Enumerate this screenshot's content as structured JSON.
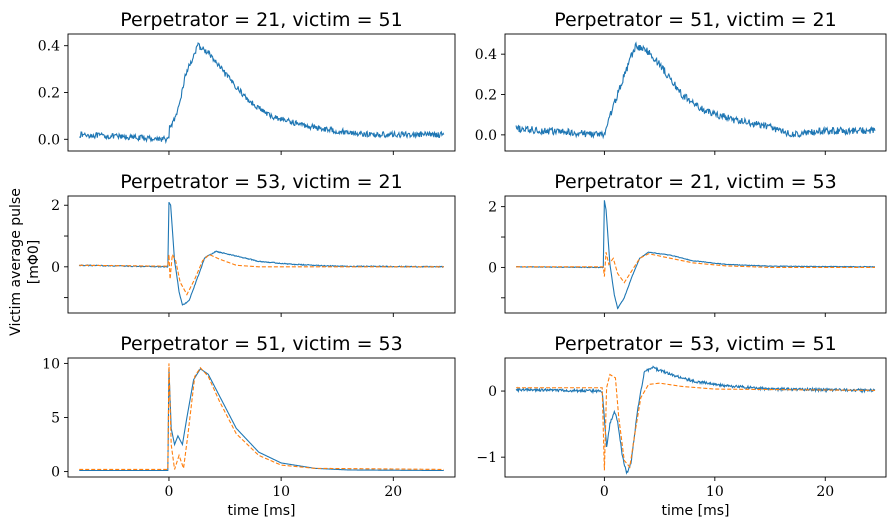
{
  "figure": {
    "ylabel": "Victim average pulse",
    "ylabel_unit": "[mΦ0]",
    "xlabel": "time [ms]"
  },
  "colors": {
    "measured": "#1f77b4",
    "model": "#ff7f0e"
  },
  "chart_data": [
    {
      "type": "line",
      "panel": "top-left",
      "title": "Perpetrator = 21, victim = 51",
      "xlabel": "",
      "ylabel": "",
      "xlim": [
        -9,
        25.5
      ],
      "ylim": [
        -0.05,
        0.45
      ],
      "xticks": [
        0,
        10,
        20
      ],
      "yticks": [
        0.0,
        0.2,
        0.4
      ],
      "ytick_labels": [
        "0.0",
        "0.2",
        "0.4"
      ],
      "series": [
        {
          "style": "solid",
          "color": "#1f77b4",
          "noise": 0.012,
          "points": [
            [
              -8,
              0.02
            ],
            [
              0,
              0.0
            ],
            [
              0.05,
              0.05
            ],
            [
              0.7,
              0.1
            ],
            [
              1.5,
              0.28
            ],
            [
              2.6,
              0.4
            ],
            [
              3.5,
              0.37
            ],
            [
              5,
              0.28
            ],
            [
              7,
              0.17
            ],
            [
              9,
              0.1
            ],
            [
              12,
              0.06
            ],
            [
              15,
              0.035
            ],
            [
              18,
              0.02
            ],
            [
              20,
              0.02
            ],
            [
              24.5,
              0.02
            ]
          ]
        }
      ]
    },
    {
      "type": "line",
      "panel": "top-right",
      "title": "Perpetrator = 51, victim = 21",
      "xlabel": "",
      "ylabel": "",
      "xlim": [
        -9,
        25.5
      ],
      "ylim": [
        -0.08,
        0.5
      ],
      "xticks": [
        0,
        10,
        20
      ],
      "yticks": [
        0.0,
        0.2,
        0.4
      ],
      "ytick_labels": [
        "0.0",
        "0.2",
        "0.4"
      ],
      "series": [
        {
          "style": "solid",
          "color": "#1f77b4",
          "noise": 0.018,
          "points": [
            [
              -8,
              0.03
            ],
            [
              0,
              0.0
            ],
            [
              0.3,
              0.06
            ],
            [
              1.5,
              0.25
            ],
            [
              2.8,
              0.44
            ],
            [
              3.8,
              0.42
            ],
            [
              5,
              0.35
            ],
            [
              7,
              0.2
            ],
            [
              9,
              0.12
            ],
            [
              12,
              0.07
            ],
            [
              15,
              0.04
            ],
            [
              17,
              0.0
            ],
            [
              20,
              0.02
            ],
            [
              24.5,
              0.02
            ]
          ]
        }
      ]
    },
    {
      "type": "line",
      "panel": "middle-left",
      "title": "Perpetrator = 53, victim = 21",
      "xlabel": "",
      "ylabel": "",
      "xlim": [
        -9,
        25.5
      ],
      "ylim": [
        -1.5,
        2.3
      ],
      "xticks": [
        0,
        10,
        20
      ],
      "yticks": [
        -1,
        0,
        1,
        2
      ],
      "ytick_labels": [
        "",
        "0",
        "",
        "2"
      ],
      "series": [
        {
          "style": "solid",
          "color": "#1f77b4",
          "noise": 0.015,
          "points": [
            [
              -8,
              0.05
            ],
            [
              -0.1,
              0.0
            ],
            [
              0.0,
              2.1
            ],
            [
              0.15,
              2.0
            ],
            [
              0.5,
              0.2
            ],
            [
              0.9,
              -0.8
            ],
            [
              1.2,
              -1.25
            ],
            [
              1.8,
              -1.1
            ],
            [
              2.5,
              -0.4
            ],
            [
              3.2,
              0.3
            ],
            [
              4.2,
              0.5
            ],
            [
              6,
              0.35
            ],
            [
              8,
              0.18
            ],
            [
              11,
              0.08
            ],
            [
              15,
              0.02
            ],
            [
              24.5,
              0.0
            ]
          ]
        },
        {
          "style": "dashed",
          "color": "#ff7f0e",
          "noise": 0.0,
          "points": [
            [
              -8,
              0.05
            ],
            [
              -0.1,
              0.02
            ],
            [
              0.0,
              0.4
            ],
            [
              0.1,
              -0.4
            ],
            [
              0.3,
              0.4
            ],
            [
              0.6,
              0.2
            ],
            [
              1.0,
              -0.5
            ],
            [
              1.6,
              -0.9
            ],
            [
              2.3,
              -0.4
            ],
            [
              3.0,
              0.2
            ],
            [
              3.6,
              0.4
            ],
            [
              4.5,
              0.25
            ],
            [
              6,
              0.05
            ],
            [
              8,
              0.0
            ],
            [
              24.5,
              0.0
            ]
          ]
        }
      ]
    },
    {
      "type": "line",
      "panel": "middle-right",
      "title": "Perpetrator = 21, victim = 53",
      "xlabel": "",
      "ylabel": "",
      "xlim": [
        -9,
        25.5
      ],
      "ylim": [
        -1.5,
        2.35
      ],
      "xticks": [
        0,
        10,
        20
      ],
      "yticks": [
        -1,
        0,
        1,
        2
      ],
      "ytick_labels": [
        "",
        "0",
        "",
        "2"
      ],
      "series": [
        {
          "style": "solid",
          "color": "#1f77b4",
          "noise": 0.01,
          "points": [
            [
              -8,
              0.02
            ],
            [
              -0.1,
              0.0
            ],
            [
              0.0,
              2.2
            ],
            [
              0.15,
              1.9
            ],
            [
              0.5,
              0.1
            ],
            [
              0.9,
              -0.9
            ],
            [
              1.2,
              -1.35
            ],
            [
              1.8,
              -1.0
            ],
            [
              2.5,
              -0.3
            ],
            [
              3.2,
              0.3
            ],
            [
              4.0,
              0.5
            ],
            [
              6,
              0.4
            ],
            [
              8,
              0.22
            ],
            [
              11,
              0.1
            ],
            [
              15,
              0.04
            ],
            [
              24.5,
              0.02
            ]
          ]
        },
        {
          "style": "dashed",
          "color": "#ff7f0e",
          "noise": 0.0,
          "points": [
            [
              -8,
              0.02
            ],
            [
              -0.1,
              0.02
            ],
            [
              0.0,
              -0.3
            ],
            [
              0.15,
              0.5
            ],
            [
              0.4,
              0.1
            ],
            [
              0.8,
              0.3
            ],
            [
              1.2,
              -0.2
            ],
            [
              1.8,
              -0.5
            ],
            [
              2.5,
              -0.1
            ],
            [
              3.2,
              0.3
            ],
            [
              4.0,
              0.45
            ],
            [
              6,
              0.3
            ],
            [
              8,
              0.15
            ],
            [
              11,
              0.05
            ],
            [
              15,
              0.0
            ],
            [
              24.5,
              0.0
            ]
          ]
        }
      ]
    },
    {
      "type": "line",
      "panel": "bottom-left",
      "title": "Perpetrator = 51, victim = 53",
      "xlabel": "time [ms]",
      "ylabel": "",
      "xlim": [
        -9,
        25.5
      ],
      "ylim": [
        -0.5,
        10.5
      ],
      "xticks": [
        0,
        10,
        20
      ],
      "yticks": [
        0,
        5,
        10
      ],
      "xtick_labels": [
        "0",
        "10",
        "20"
      ],
      "ytick_labels": [
        "0",
        "5",
        "10"
      ],
      "series": [
        {
          "style": "solid",
          "color": "#1f77b4",
          "noise": 0.0,
          "points": [
            [
              -8,
              0.1
            ],
            [
              -0.1,
              0.1
            ],
            [
              0.0,
              9.5
            ],
            [
              0.2,
              4.0
            ],
            [
              0.5,
              2.5
            ],
            [
              0.8,
              3.3
            ],
            [
              1.2,
              2.5
            ],
            [
              1.6,
              5.0
            ],
            [
              2.2,
              8.5
            ],
            [
              2.8,
              9.5
            ],
            [
              3.5,
              9.0
            ],
            [
              4.5,
              7.0
            ],
            [
              6,
              4.0
            ],
            [
              8,
              1.8
            ],
            [
              10,
              0.8
            ],
            [
              13,
              0.3
            ],
            [
              16,
              0.15
            ],
            [
              24.5,
              0.1
            ]
          ]
        },
        {
          "style": "dashed",
          "color": "#ff7f0e",
          "noise": 0.0,
          "points": [
            [
              -8,
              0.2
            ],
            [
              -0.1,
              0.2
            ],
            [
              0.0,
              10.0
            ],
            [
              0.2,
              2.5
            ],
            [
              0.5,
              0.2
            ],
            [
              0.9,
              1.5
            ],
            [
              1.3,
              0.3
            ],
            [
              1.7,
              3.5
            ],
            [
              2.3,
              8.8
            ],
            [
              2.8,
              9.6
            ],
            [
              3.5,
              8.8
            ],
            [
              4.5,
              6.5
            ],
            [
              6,
              3.5
            ],
            [
              8,
              1.5
            ],
            [
              10,
              0.6
            ],
            [
              13,
              0.3
            ],
            [
              24.5,
              0.2
            ]
          ]
        }
      ]
    },
    {
      "type": "line",
      "panel": "bottom-right",
      "title": "Perpetrator = 53, victim = 51",
      "xlabel": "time [ms]",
      "ylabel": "",
      "xlim": [
        -9,
        25.5
      ],
      "ylim": [
        -1.3,
        0.5
      ],
      "xticks": [
        0,
        10,
        20
      ],
      "yticks": [
        -1,
        0
      ],
      "xtick_labels": [
        "0",
        "10",
        "20"
      ],
      "ytick_labels": [
        "−1",
        "0"
      ],
      "series": [
        {
          "style": "solid",
          "color": "#1f77b4",
          "noise": 0.02,
          "points": [
            [
              -8,
              0.02
            ],
            [
              -0.2,
              0.0
            ],
            [
              0.0,
              -0.4
            ],
            [
              0.2,
              -0.85
            ],
            [
              0.5,
              -0.5
            ],
            [
              0.9,
              -0.3
            ],
            [
              1.2,
              -0.45
            ],
            [
              1.6,
              -0.95
            ],
            [
              2.0,
              -1.25
            ],
            [
              2.4,
              -1.1
            ],
            [
              3.0,
              -0.3
            ],
            [
              3.6,
              0.28
            ],
            [
              4.3,
              0.36
            ],
            [
              6,
              0.25
            ],
            [
              8,
              0.15
            ],
            [
              11,
              0.08
            ],
            [
              15,
              0.03
            ],
            [
              24.5,
              0.01
            ]
          ]
        },
        {
          "style": "dashed",
          "color": "#ff7f0e",
          "noise": 0.0,
          "points": [
            [
              -8,
              0.05
            ],
            [
              -0.2,
              0.05
            ],
            [
              0.0,
              -1.2
            ],
            [
              0.2,
              0.05
            ],
            [
              0.5,
              0.25
            ],
            [
              1.0,
              0.2
            ],
            [
              1.3,
              -0.4
            ],
            [
              1.8,
              -1.05
            ],
            [
              2.3,
              -1.15
            ],
            [
              2.8,
              -0.6
            ],
            [
              3.3,
              -0.1
            ],
            [
              4.0,
              0.1
            ],
            [
              5,
              0.12
            ],
            [
              7,
              0.07
            ],
            [
              10,
              0.03
            ],
            [
              24.5,
              0.01
            ]
          ]
        }
      ]
    }
  ]
}
